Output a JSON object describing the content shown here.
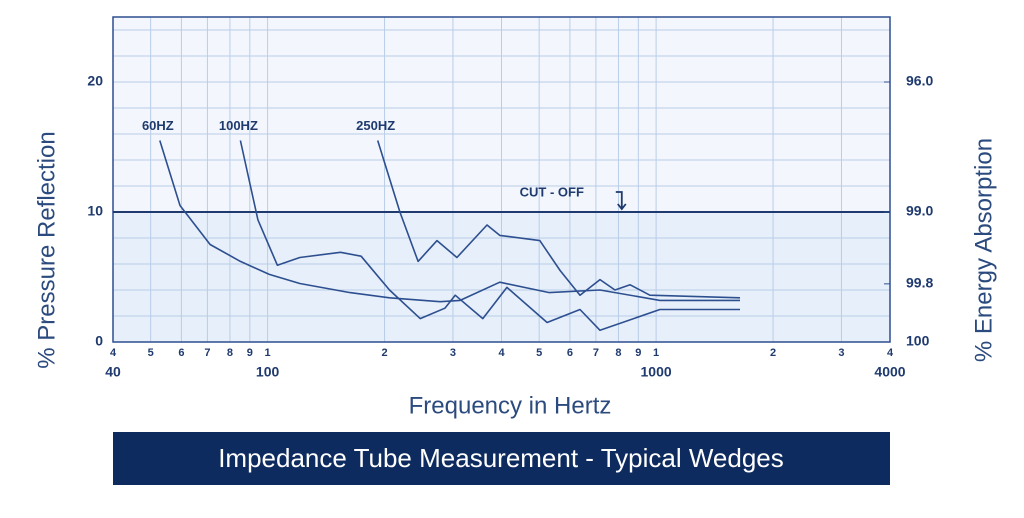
{
  "chart_data": {
    "type": "line",
    "title": "Impedance Tube Measurement - Typical Wedges",
    "xlabel": "Frequency in Hertz",
    "ylabel": "% Pressure Reflection",
    "y2label": "% Energy Absorption",
    "xscale": "log",
    "xlim": [
      40,
      4000
    ],
    "ylim": [
      0,
      25
    ],
    "grid": true,
    "color": "#2d4f8f",
    "xticks": [
      {
        "value": 40,
        "label": "4"
      },
      {
        "value": 50,
        "label": "5"
      },
      {
        "value": 60,
        "label": "6"
      },
      {
        "value": 70,
        "label": "7"
      },
      {
        "value": 80,
        "label": "8"
      },
      {
        "value": 90,
        "label": "9"
      },
      {
        "value": 100,
        "label": "1"
      },
      {
        "value": 200,
        "label": "2"
      },
      {
        "value": 300,
        "label": "3"
      },
      {
        "value": 400,
        "label": "4"
      },
      {
        "value": 500,
        "label": "5"
      },
      {
        "value": 600,
        "label": "6"
      },
      {
        "value": 700,
        "label": "7"
      },
      {
        "value": 800,
        "label": "8"
      },
      {
        "value": 900,
        "label": "9"
      },
      {
        "value": 1000,
        "label": "1"
      },
      {
        "value": 2000,
        "label": "2"
      },
      {
        "value": 3000,
        "label": "3"
      },
      {
        "value": 4000,
        "label": "4"
      }
    ],
    "xticks_major": [
      40,
      100,
      1000,
      4000
    ],
    "yticks": [
      0,
      10,
      20
    ],
    "yminor": [
      2,
      4,
      6,
      8,
      12,
      14,
      16,
      18,
      22,
      24
    ],
    "y2ticks": [
      96.0,
      99.0,
      99.8,
      100
    ],
    "y2tick_labels": [
      "96.0",
      "99.0",
      "99.8",
      "100"
    ],
    "cutoff": {
      "label": "CUT - OFF",
      "y": 10,
      "x": 816
    },
    "series": [
      {
        "name": "60HZ",
        "x": [
          52.8,
          59.5,
          71.1,
          85.1,
          101,
          121,
          163,
          206,
          278,
          313,
          396,
          531,
          717,
          1023,
          1644
        ],
        "values": [
          15.5,
          10.5,
          7.5,
          6.2,
          5.2,
          4.5,
          3.8,
          3.4,
          3.1,
          3.2,
          4.6,
          3.8,
          4.0,
          3.2,
          3.2
        ]
      },
      {
        "name": "100HZ",
        "x": [
          85.1,
          94.4,
          106,
          121,
          154,
          174,
          206,
          247,
          286,
          304,
          358,
          413,
          524,
          637,
          717,
          1023,
          1644
        ],
        "values": [
          15.5,
          9.4,
          5.9,
          6.5,
          6.9,
          6.6,
          4.0,
          1.8,
          2.6,
          3.6,
          1.8,
          4.2,
          1.5,
          2.5,
          0.9,
          2.5,
          2.5
        ]
      },
      {
        "name": "250HZ",
        "x": [
          192,
          219,
          244,
          273,
          307,
          367,
          396,
          502,
          566,
          637,
          717,
          784,
          857,
          964,
          1644
        ],
        "values": [
          15.5,
          10.0,
          6.2,
          7.8,
          6.5,
          9.0,
          8.2,
          7.8,
          5.5,
          3.6,
          4.8,
          4.0,
          4.4,
          3.6,
          3.4
        ]
      }
    ]
  }
}
